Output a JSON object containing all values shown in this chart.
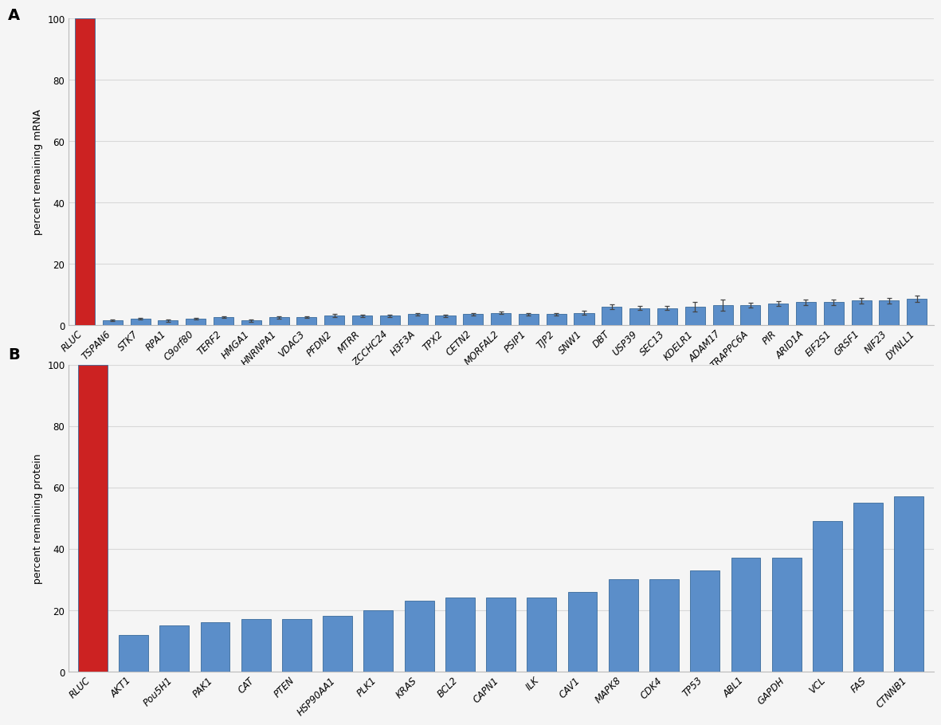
{
  "panel_a": {
    "categories": [
      "RLUC",
      "TSPAN6",
      "STK7",
      "RPA1",
      "C9orf80",
      "TERF2",
      "HMGA1",
      "HNRNPA1",
      "VDAC3",
      "PFDN2",
      "MTRR",
      "ZCCHC24",
      "H3F3A",
      "TPX2",
      "CETN2",
      "MORFAL2",
      "PSIP1",
      "TJP2",
      "SNW1",
      "DBT",
      "USP39",
      "SEC13",
      "KDELR1",
      "ADAM17",
      "TRAPPC6A",
      "PIR",
      "ARID1A",
      "EIF2S1",
      "GRSF1",
      "NIF23",
      "DYNLL1"
    ],
    "values": [
      100,
      1.5,
      2.0,
      1.5,
      2.0,
      2.5,
      1.5,
      2.5,
      2.5,
      3.0,
      3.0,
      3.0,
      3.5,
      3.0,
      3.5,
      4.0,
      3.5,
      3.5,
      4.0,
      6.0,
      5.5,
      5.5,
      6.0,
      6.5,
      6.5,
      7.0,
      7.5,
      7.5,
      8.0,
      8.0,
      8.5
    ],
    "errors": [
      0,
      0.3,
      0.3,
      0.4,
      0.3,
      0.3,
      0.4,
      0.4,
      0.3,
      0.5,
      0.4,
      0.4,
      0.5,
      0.4,
      0.5,
      0.5,
      0.5,
      0.5,
      0.6,
      0.8,
      0.7,
      0.7,
      1.5,
      1.8,
      0.8,
      0.8,
      0.9,
      0.9,
      0.9,
      0.9,
      1.0
    ],
    "bar_colors": [
      "#cc2222",
      "#5b8ec9",
      "#5b8ec9",
      "#5b8ec9",
      "#5b8ec9",
      "#5b8ec9",
      "#5b8ec9",
      "#5b8ec9",
      "#5b8ec9",
      "#5b8ec9",
      "#5b8ec9",
      "#5b8ec9",
      "#5b8ec9",
      "#5b8ec9",
      "#5b8ec9",
      "#5b8ec9",
      "#5b8ec9",
      "#5b8ec9",
      "#5b8ec9",
      "#5b8ec9",
      "#5b8ec9",
      "#5b8ec9",
      "#5b8ec9",
      "#5b8ec9",
      "#5b8ec9",
      "#5b8ec9",
      "#5b8ec9",
      "#5b8ec9",
      "#5b8ec9",
      "#5b8ec9",
      "#5b8ec9"
    ],
    "ylabel": "percent remaining mRNA",
    "ylim": [
      0,
      100
    ],
    "yticks": [
      0,
      20,
      40,
      60,
      80,
      100
    ],
    "panel_label": "A"
  },
  "panel_b": {
    "categories": [
      "RLUC",
      "AKT1",
      "Pou5H1",
      "PAK1",
      "CAT",
      "PTEN",
      "HSP90AA1",
      "PLK1",
      "KRAS",
      "BCL2",
      "CAPN1",
      "ILK",
      "CAV1",
      "MAPK8",
      "CDK4",
      "TP53",
      "ABL1",
      "GAPDH",
      "VCL",
      "FAS",
      "CTNNB1"
    ],
    "values": [
      100,
      12,
      15,
      16,
      17,
      17,
      18,
      20,
      23,
      24,
      24,
      24,
      26,
      30,
      30,
      33,
      37,
      37,
      49,
      55,
      57
    ],
    "errors": [
      0,
      0,
      0,
      0,
      0,
      0,
      0,
      0,
      0,
      0,
      0,
      0,
      0,
      0,
      0,
      0,
      0,
      0,
      0,
      0,
      0
    ],
    "bar_colors": [
      "#cc2222",
      "#5b8ec9",
      "#5b8ec9",
      "#5b8ec9",
      "#5b8ec9",
      "#5b8ec9",
      "#5b8ec9",
      "#5b8ec9",
      "#5b8ec9",
      "#5b8ec9",
      "#5b8ec9",
      "#5b8ec9",
      "#5b8ec9",
      "#5b8ec9",
      "#5b8ec9",
      "#5b8ec9",
      "#5b8ec9",
      "#5b8ec9",
      "#5b8ec9",
      "#5b8ec9",
      "#5b8ec9"
    ],
    "ylabel": "percent remaining protein",
    "ylim": [
      0,
      100
    ],
    "yticks": [
      0,
      20,
      40,
      60,
      80,
      100
    ],
    "panel_label": "B"
  },
  "figure_facecolor": "#f5f5f5",
  "axes_facecolor": "#f5f5f5",
  "grid_color": "#d8d8d8",
  "bar_edge_color": "#3a6a9a",
  "tick_fontsize": 8.5,
  "ylabel_fontsize": 9,
  "panel_label_fontsize": 14
}
